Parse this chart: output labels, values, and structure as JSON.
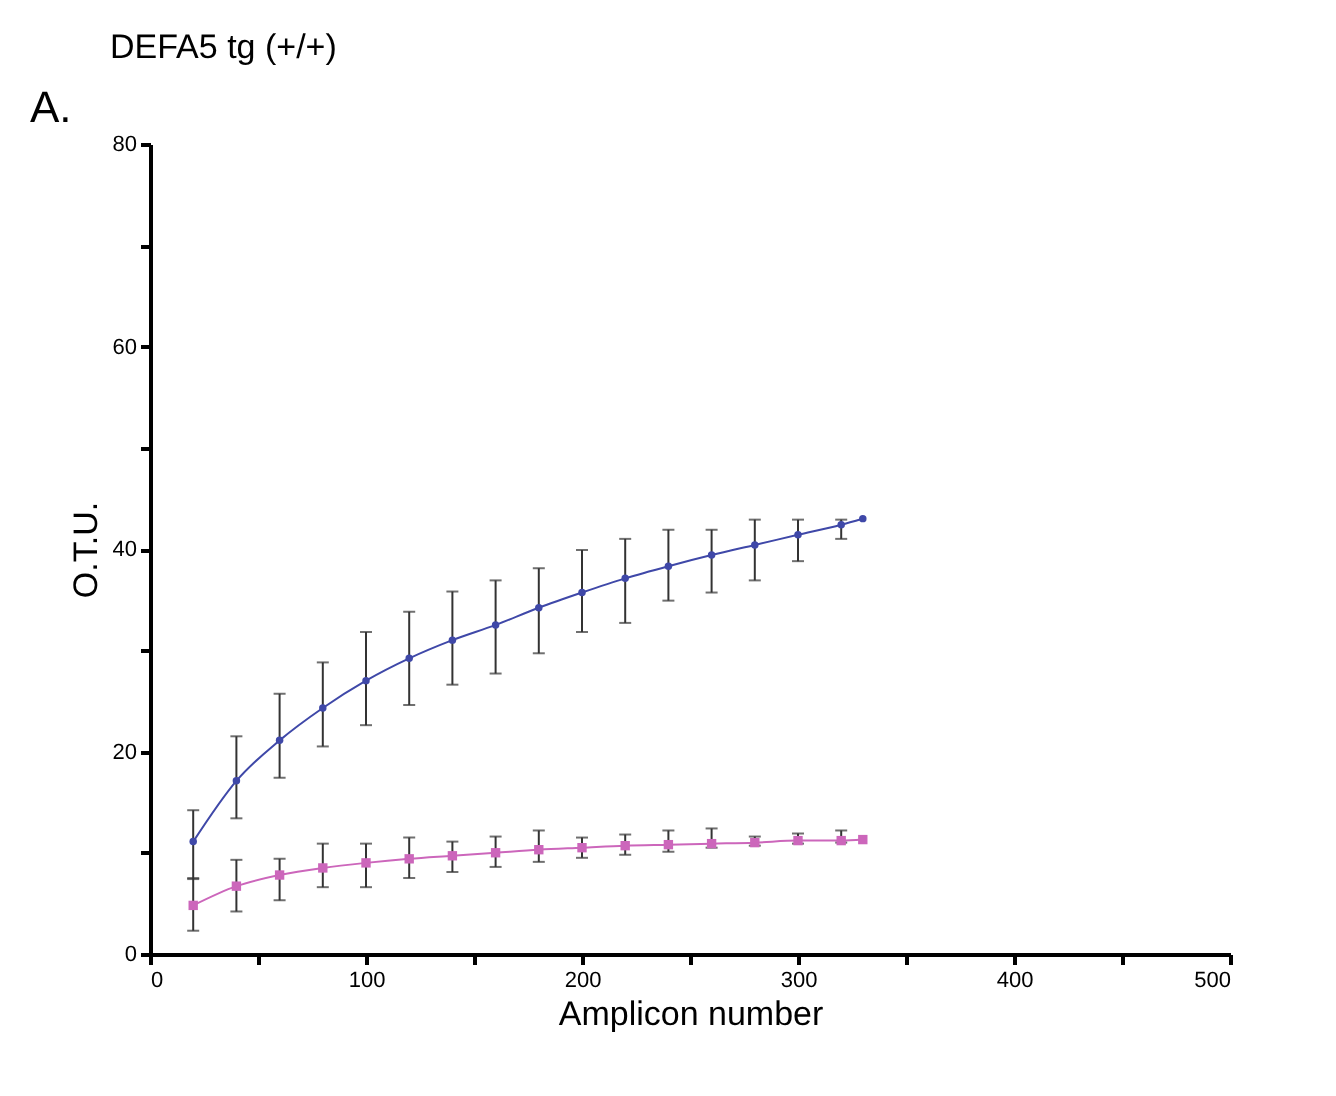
{
  "chart_data": {
    "type": "line",
    "title": "DEFA5 tg (+/+)",
    "xlabel": "Amplicon number",
    "ylabel": "O.T.U.",
    "annotations": [
      "A."
    ],
    "x": [
      20,
      40,
      60,
      80,
      100,
      120,
      140,
      160,
      180,
      200,
      220,
      240,
      260,
      280,
      300,
      320,
      330
    ],
    "series": [
      {
        "color": "#3f48a8",
        "marker": "circle",
        "values": [
          11.1,
          17.1,
          21.1,
          24.3,
          27.0,
          29.2,
          31.0,
          32.5,
          34.2,
          35.7,
          37.1,
          38.3,
          39.4,
          40.4,
          41.4,
          42.4,
          43.0
        ],
        "errors": [
          [
            7.4,
            14.2
          ],
          [
            13.4,
            21.5
          ],
          [
            17.4,
            25.7
          ],
          [
            20.5,
            28.8
          ],
          [
            22.6,
            31.8
          ],
          [
            24.6,
            33.8
          ],
          [
            26.6,
            35.8
          ],
          [
            27.7,
            36.9
          ],
          [
            29.7,
            38.1
          ],
          [
            31.8,
            39.9
          ],
          [
            32.7,
            41.0
          ],
          [
            34.9,
            41.9
          ],
          [
            35.7,
            41.9
          ],
          [
            36.9,
            42.9
          ],
          [
            38.8,
            42.9
          ],
          [
            41.0,
            42.9
          ],
          null
        ]
      },
      {
        "color": "#cc66bb",
        "marker": "square",
        "values": [
          4.8,
          6.7,
          7.8,
          8.5,
          9.0,
          9.4,
          9.7,
          10.0,
          10.3,
          10.5,
          10.7,
          10.8,
          10.9,
          11.0,
          11.2,
          11.2,
          11.3
        ],
        "errors": [
          [
            2.3,
            7.5
          ],
          [
            4.2,
            9.3
          ],
          [
            5.3,
            9.4
          ],
          [
            6.6,
            10.9
          ],
          [
            6.6,
            10.9
          ],
          [
            7.5,
            11.5
          ],
          [
            8.1,
            11.1
          ],
          [
            8.6,
            11.6
          ],
          [
            9.1,
            12.2
          ],
          [
            9.5,
            11.5
          ],
          [
            9.8,
            11.8
          ],
          [
            10.1,
            12.2
          ],
          [
            10.5,
            12.4
          ],
          [
            10.7,
            11.6
          ],
          [
            10.9,
            11.9
          ],
          [
            11.0,
            12.2
          ],
          null
        ]
      }
    ],
    "xlim": [
      0,
      500
    ],
    "ylim": [
      0,
      80
    ],
    "xticks": [
      0,
      {
        "value": 50,
        "label": null
      },
      100,
      {
        "value": 150,
        "label": null
      },
      200,
      {
        "value": 250,
        "label": null
      },
      300,
      {
        "value": 350,
        "label": null
      },
      400,
      {
        "value": 450,
        "label": null
      },
      500
    ],
    "yticks": [
      0,
      {
        "value": 10,
        "label": null
      },
      20,
      {
        "value": 30,
        "label": null
      },
      40,
      {
        "value": 50,
        "label": null
      },
      60,
      {
        "value": 70,
        "label": null
      },
      80
    ],
    "grid": false
  }
}
